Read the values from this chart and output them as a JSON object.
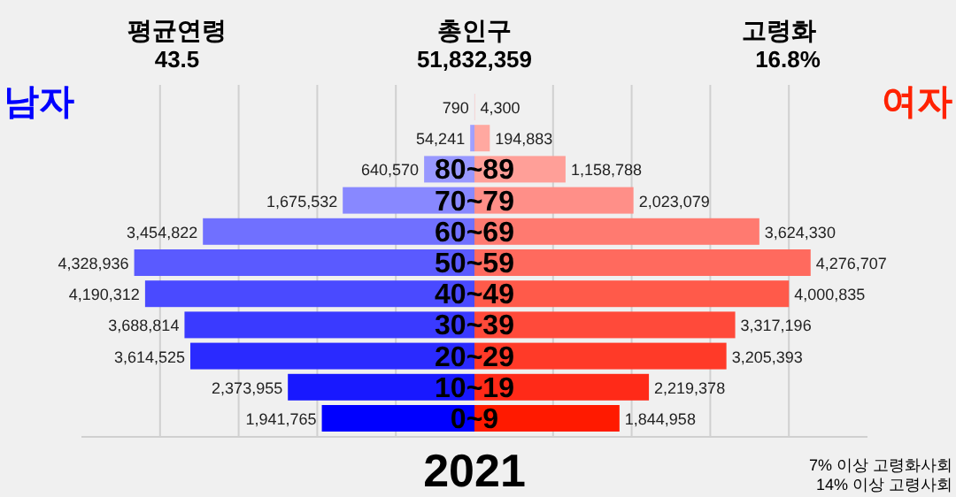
{
  "chart_data": [
    {
      "type": "bar",
      "orientation": "horizontal",
      "title": "2021",
      "categories": [
        null,
        null,
        "80~89",
        "70~79",
        "60~69",
        "50~59",
        "40~49",
        "30~39",
        "20~29",
        "10~19",
        "0~9"
      ],
      "series": [
        {
          "name": "남자",
          "color": "#0000ff",
          "colors": [
            "#a8a8ff",
            "#a0a0ff",
            "#9898ff",
            "#8888ff",
            "#7070ff",
            "#5a5aff",
            "#4a4aff",
            "#3a3aff",
            "#2a2aff",
            "#1818ff",
            "#0000ff"
          ],
          "values": [
            790,
            54241,
            640570,
            1675532,
            3454822,
            4328936,
            4190312,
            3688814,
            3614525,
            2373955,
            1941765
          ],
          "value_labels": [
            "790",
            "54,241",
            "640,570",
            "1,675,532",
            "3,454,822",
            "4,328,936",
            "4,190,312",
            "3,688,814",
            "3,614,525",
            "2,373,955",
            "1,941,765"
          ]
        }
      ],
      "xlim": [
        5000000,
        0
      ],
      "xticks": [
        {
          "value": 4000000,
          "label": null
        },
        {
          "value": 3000000,
          "label": null
        },
        {
          "value": 2000000,
          "label": null
        },
        {
          "value": 1000000,
          "label": null
        }
      ],
      "grid": "x",
      "tick_labels": "y",
      "annotations": [
        "평균연령",
        "43.5",
        "총인구",
        "51,832,359"
      ]
    },
    {
      "type": "bar",
      "orientation": "horizontal",
      "categories": [
        null,
        null,
        null,
        null,
        null,
        null,
        null,
        null,
        null,
        null,
        null
      ],
      "series": [
        {
          "name": "여자",
          "color": "#ff2200",
          "colors": [
            "#ffb0a8",
            "#ffa8a0",
            "#ff9f98",
            "#ff8f88",
            "#ff7a70",
            "#ff6a5e",
            "#ff5a4a",
            "#ff4a3a",
            "#ff3a28",
            "#ff2a18",
            "#ff1a00"
          ],
          "values": [
            4300,
            194883,
            1158788,
            2023079,
            3624330,
            4276707,
            4000835,
            3317196,
            3205393,
            2219378,
            1844958
          ],
          "value_labels": [
            "4,300",
            "194,883",
            "1,158,788",
            "2,023,079",
            "3,624,330",
            "4,276,707",
            "4,000,835",
            "3,317,196",
            "3,205,393",
            "2,219,378",
            "1,844,958"
          ]
        }
      ],
      "xlim": [
        0,
        5000000
      ],
      "xticks": [
        {
          "value": 1000000,
          "label": null
        },
        {
          "value": 2000000,
          "label": null
        },
        {
          "value": 3000000,
          "label": null
        },
        {
          "value": 4000000,
          "label": null
        }
      ],
      "grid": "x",
      "tick_labels": false,
      "annotations": [
        "고령화",
        "16.8%",
        "7% 이상 고령화사회",
        "14% 이상 고령사회"
      ]
    }
  ]
}
